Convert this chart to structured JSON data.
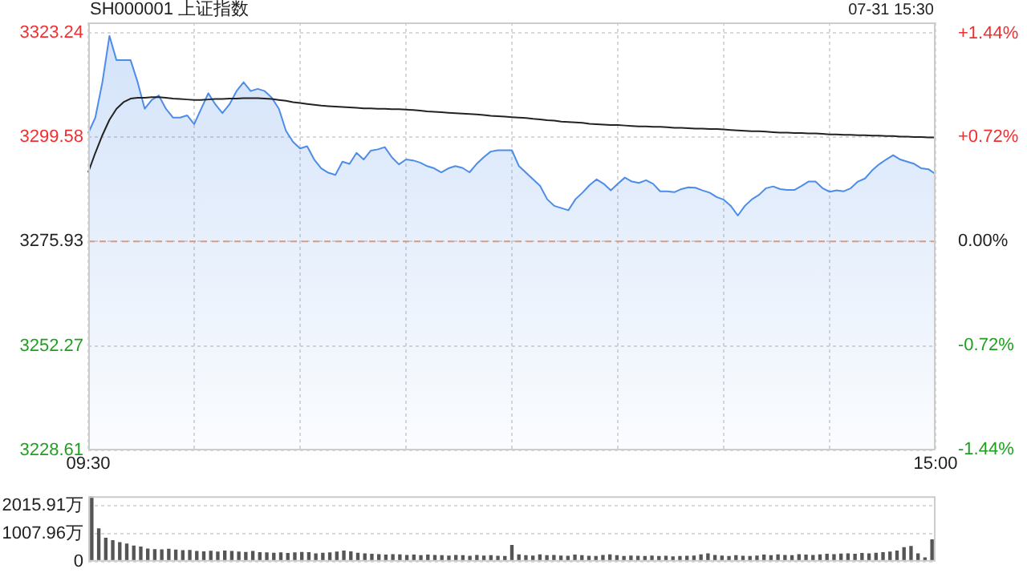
{
  "chart_data": [
    {
      "type": "area",
      "title": "SH000001 上证指数",
      "subtitle": "07-31 15:30",
      "categories": [
        "09:30",
        null,
        null,
        null,
        null,
        null,
        null,
        null,
        null,
        null,
        null,
        null,
        null,
        null,
        null,
        null,
        null,
        null,
        null,
        null,
        null,
        null,
        null,
        null,
        null,
        null,
        null,
        null,
        null,
        null,
        null,
        null,
        null,
        null,
        null,
        null,
        null,
        null,
        null,
        null,
        null,
        null,
        null,
        null,
        null,
        null,
        null,
        null,
        null,
        null,
        null,
        null,
        null,
        null,
        null,
        null,
        null,
        null,
        null,
        null,
        null,
        null,
        null,
        null,
        null,
        null,
        null,
        null,
        null,
        null,
        null,
        null,
        null,
        null,
        null,
        null,
        null,
        null,
        null,
        null,
        null,
        null,
        null,
        null,
        null,
        null,
        null,
        null,
        null,
        null,
        null,
        null,
        null,
        null,
        null,
        null,
        null,
        null,
        null,
        null,
        null,
        null,
        null,
        null,
        null,
        null,
        null,
        null,
        null,
        null,
        null,
        null,
        null,
        null,
        null,
        null,
        null,
        null,
        null,
        null,
        "15:00"
      ],
      "series": [
        {
          "color": "#4d8ce8",
          "values": [
            3300.5,
            3304,
            3312,
            3322.5,
            3317,
            3317,
            3317,
            3312,
            3306,
            3308,
            3309,
            3306,
            3304,
            3304,
            3304.5,
            3302.5,
            3306,
            3309.5,
            3307,
            3305,
            3307,
            3310,
            3312,
            3310,
            3310.5,
            3310,
            3308.5,
            3306,
            3301,
            3298.5,
            3297,
            3297.5,
            3294.5,
            3292.5,
            3291.5,
            3291,
            3294,
            3293.5,
            3296,
            3294.5,
            3296.5,
            3296.8,
            3297.3,
            3295,
            3293.4,
            3294.5,
            3294.3,
            3293.8,
            3293,
            3292.5,
            3291.6,
            3292.5,
            3293,
            3292.6,
            3291.6,
            3293.5,
            3295,
            3296.3,
            3296.6,
            3296.6,
            3296.6,
            3293,
            3291.5,
            3290,
            3288.5,
            3285.5,
            3284,
            3283.5,
            3283,
            3285.5,
            3287,
            3288.7,
            3290,
            3289,
            3287.5,
            3289,
            3290.4,
            3289.5,
            3289.2,
            3289.8,
            3289,
            3287.3,
            3287.3,
            3287.1,
            3287.8,
            3288.2,
            3288.1,
            3287.5,
            3287,
            3286,
            3285.4,
            3284,
            3281.8,
            3284,
            3285.5,
            3286.5,
            3288,
            3288.4,
            3287.8,
            3287.6,
            3287.6,
            3288.5,
            3289.5,
            3289.5,
            3288,
            3287.2,
            3287.5,
            3287.3,
            3288,
            3289.5,
            3290.2,
            3292,
            3293.4,
            3294.5,
            3295.5,
            3294.5,
            3294,
            3293.5,
            3292.5,
            3292.3,
            3291.2
          ]
        },
        {
          "type": "line",
          "color": "#222222",
          "values": [
            3291.6,
            3296,
            3300,
            3303.5,
            3306,
            3307.5,
            3308.3,
            3308.5,
            3308.5,
            3308.6,
            3308.6,
            3308.5,
            3308.3,
            3308.2,
            3308.1,
            3308,
            3308,
            3308.1,
            3308.2,
            3308.2,
            3308.3,
            3308.3,
            3308.4,
            3308.4,
            3308.4,
            3308.3,
            3308.2,
            3308,
            3307.8,
            3307.5,
            3307.3,
            3307.1,
            3306.9,
            3306.7,
            3306.6,
            3306.5,
            3306.4,
            3306.3,
            3306.2,
            3306.1,
            3306.1,
            3306,
            3306,
            3305.9,
            3305.9,
            3305.8,
            3305.7,
            3305.6,
            3305.4,
            3305.3,
            3305.2,
            3305.1,
            3305,
            3304.9,
            3304.8,
            3304.7,
            3304.6,
            3304.4,
            3304.3,
            3304.2,
            3304.1,
            3304,
            3303.9,
            3303.7,
            3303.6,
            3303.4,
            3303.3,
            3303.1,
            3303,
            3302.9,
            3302.8,
            3302.6,
            3302.5,
            3302.4,
            3302.3,
            3302.3,
            3302.2,
            3302.1,
            3302,
            3302,
            3301.9,
            3301.9,
            3301.8,
            3301.7,
            3301.7,
            3301.6,
            3301.5,
            3301.5,
            3301.4,
            3301.4,
            3301.3,
            3301.2,
            3301.1,
            3301,
            3300.9,
            3300.9,
            3300.8,
            3300.7,
            3300.6,
            3300.6,
            3300.5,
            3300.5,
            3300.4,
            3300.4,
            3300.3,
            3300.2,
            3300.2,
            3300.1,
            3300.1,
            3300,
            3300,
            3299.9,
            3299.9,
            3299.8,
            3299.8,
            3299.7,
            3299.7,
            3299.6,
            3299.6,
            3299.5,
            3299.5
          ]
        }
      ],
      "ylim": [
        3228.61,
        3325.55
      ],
      "yticks": [
        3228.61,
        3252.27,
        3275.93,
        3299.58,
        3323.24
      ],
      "y2lim": [
        -1.4445,
        1.5147
      ],
      "y2ticks": [
        {
          "value": -1.44,
          "label": "-1.44%"
        },
        {
          "value": -0.72,
          "label": "-0.72%"
        },
        {
          "value": 0,
          "label": "0.00%"
        },
        {
          "value": 0.72,
          "label": "+0.72%"
        },
        {
          "value": 1.44,
          "label": "+1.44%"
        }
      ],
      "ref_lines": [
        {
          "axis": "y",
          "value": 3275.93,
          "color": "#f0a070",
          "line_style": "dashed"
        }
      ],
      "grid": true
    },
    {
      "type": "bar",
      "categories": [
        null,
        null,
        null,
        null,
        null,
        null,
        null,
        null,
        null,
        null,
        null,
        null,
        null,
        null,
        null,
        null,
        null,
        null,
        null,
        null,
        null,
        null,
        null,
        null,
        null,
        null,
        null,
        null,
        null,
        null,
        null,
        null,
        null,
        null,
        null,
        null,
        null,
        null,
        null,
        null,
        null,
        null,
        null,
        null,
        null,
        null,
        null,
        null,
        null,
        null,
        null,
        null,
        null,
        null,
        null,
        null,
        null,
        null,
        null,
        null,
        null,
        null,
        null,
        null,
        null,
        null,
        null,
        null,
        null,
        null,
        null,
        null,
        null,
        null,
        null,
        null,
        null,
        null,
        null,
        null,
        null,
        null,
        null,
        null,
        null,
        null,
        null,
        null,
        null,
        null,
        null,
        null,
        null,
        null,
        null,
        null,
        null,
        null,
        null,
        null,
        null,
        null,
        null,
        null,
        null,
        null,
        null,
        null,
        null,
        null,
        null,
        null,
        null,
        null,
        null,
        null,
        null,
        null,
        null,
        null,
        null
      ],
      "series": [
        {
          "color": "#555555",
          "values": [
            2350,
            1200,
            860,
            770,
            700,
            650,
            580,
            540,
            470,
            450,
            440,
            460,
            430,
            410,
            420,
            380,
            370,
            390,
            360,
            400,
            380,
            360,
            350,
            380,
            340,
            330,
            320,
            330,
            310,
            330,
            350,
            340,
            300,
            320,
            330,
            360,
            400,
            370,
            320,
            300,
            280,
            270,
            250,
            270,
            260,
            240,
            250,
            230,
            250,
            240,
            230,
            220,
            240,
            230,
            210,
            240,
            220,
            230,
            210,
            200,
            600,
            260,
            230,
            220,
            260,
            230,
            240,
            220,
            210,
            250,
            230,
            210,
            200,
            240,
            260,
            230,
            200,
            220,
            210,
            200,
            220,
            200,
            210,
            190,
            200,
            210,
            220,
            260,
            300,
            240,
            220,
            200,
            230,
            210,
            200,
            220,
            250,
            230,
            260,
            240,
            230,
            270,
            250,
            240,
            260,
            280,
            270,
            290,
            300,
            280,
            310,
            300,
            320,
            340,
            360,
            400,
            520,
            560,
            300,
            150,
            800
          ]
        }
      ],
      "ylim": [
        0,
        2350
      ],
      "yticks": [
        0,
        {
          "value": 1007.96,
          "label": "1007.96万"
        },
        {
          "value": 2015.91,
          "label": "2015.91万"
        }
      ],
      "grid": "y",
      "tick_labels": "y"
    }
  ]
}
